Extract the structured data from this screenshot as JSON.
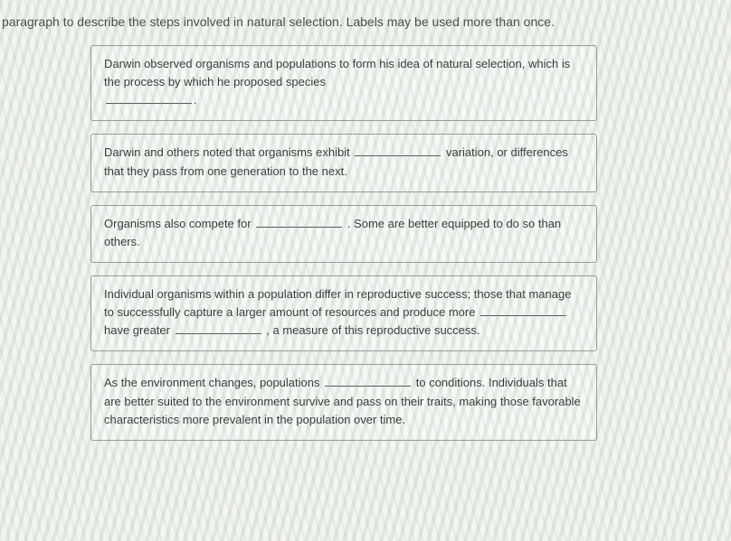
{
  "instruction": "paragraph to describe the steps involved in natural selection. Labels may be used more than once.",
  "boxes": [
    {
      "pre1": "Darwin observed organisms and populations to form his idea of natural selection, which is the process by which he proposed species",
      "post1": "."
    },
    {
      "pre1": "Darwin and others noted that organisms exhibit",
      "mid1": "variation, or differences that they pass from one generation to the next."
    },
    {
      "pre1": "Organisms also compete for",
      "mid1": ". Some are better equipped to do so than others."
    },
    {
      "pre1": "Individual organisms within a population differ in reproductive success; those that manage to successfully capture a larger amount of resources and produce more",
      "mid1": "have greater",
      "mid2": ", a measure of this reproductive success."
    },
    {
      "pre1": "As the environment changes, populations",
      "mid1": "to conditions. Individuals that are better suited to the environment survive and pass on their traits, making those favorable characteristics more prevalent in the population over time."
    }
  ]
}
